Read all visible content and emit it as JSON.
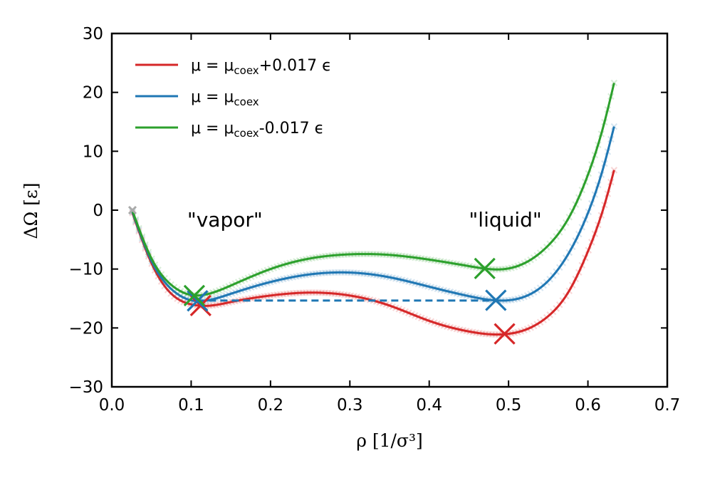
{
  "chart_data": {
    "type": "line",
    "title": "",
    "xlabel": "ρ [1/σ³]",
    "ylabel": "ΔΩ [ε]",
    "xlim": [
      0.0,
      0.7
    ],
    "ylim": [
      -30,
      30
    ],
    "xticks": [
      "0.0",
      "0.1",
      "0.2",
      "0.3",
      "0.4",
      "0.5",
      "0.6",
      "0.7"
    ],
    "yticks": [
      "30",
      "20",
      "10",
      "0",
      "−10",
      "−20",
      "−30"
    ],
    "grid": false,
    "legend_position": "top-left",
    "x": [
      0.026,
      0.05,
      0.075,
      0.1,
      0.125,
      0.15,
      0.2,
      0.25,
      0.3,
      0.35,
      0.4,
      0.45,
      0.5,
      0.55,
      0.575,
      0.6,
      0.62,
      0.633
    ],
    "series": [
      {
        "name": "μ = μcoex+0.017 ϵ",
        "legend_main": "μ = μ",
        "legend_sub": "coex",
        "legend_tail": "+0.017 ϵ",
        "color": "#d62728",
        "values": [
          -0.5,
          -9.0,
          -14.2,
          -16.0,
          -16.2,
          -15.6,
          -14.5,
          -14.0,
          -14.5,
          -16.2,
          -18.8,
          -20.6,
          -21.0,
          -18.0,
          -14.0,
          -7.0,
          0.5,
          6.8
        ]
      },
      {
        "name": "μ = μcoex",
        "legend_main": "μ = μ",
        "legend_sub": "coex",
        "legend_tail": "",
        "color": "#1f77b4",
        "values": [
          -0.3,
          -8.6,
          -13.4,
          -15.3,
          -15.2,
          -14.2,
          -12.2,
          -10.9,
          -10.6,
          -11.4,
          -13.0,
          -14.6,
          -15.3,
          -12.0,
          -7.5,
          -0.5,
          7.5,
          14.2
        ]
      },
      {
        "name": "μ = μcoex-0.017 ϵ",
        "legend_main": "μ = μ",
        "legend_sub": "coex",
        "legend_tail": "-0.017 ϵ",
        "color": "#2ca02c",
        "values": [
          -0.1,
          -8.2,
          -12.7,
          -14.4,
          -14.1,
          -12.8,
          -10.0,
          -8.2,
          -7.5,
          -7.6,
          -8.4,
          -9.5,
          -9.9,
          -6.0,
          -1.5,
          6.0,
          14.5,
          21.6
        ]
      }
    ],
    "minima_markers": [
      {
        "series": 0,
        "x": 0.112,
        "y": -16.2
      },
      {
        "series": 0,
        "x": 0.495,
        "y": -21.0
      },
      {
        "series": 1,
        "x": 0.108,
        "y": -15.4
      },
      {
        "series": 1,
        "x": 0.484,
        "y": -15.3
      },
      {
        "series": 2,
        "x": 0.104,
        "y": -14.5
      },
      {
        "series": 2,
        "x": 0.47,
        "y": -9.9
      }
    ],
    "coexistence_line": {
      "x": [
        0.108,
        0.484
      ],
      "y": -15.35,
      "color": "#1f77b4",
      "style": "dashed"
    },
    "annotations": [
      {
        "text": "\"vapor\"",
        "x": 0.095,
        "y": -2.8
      },
      {
        "text": "\"liquid\"",
        "x": 0.45,
        "y": -2.8
      }
    ]
  }
}
